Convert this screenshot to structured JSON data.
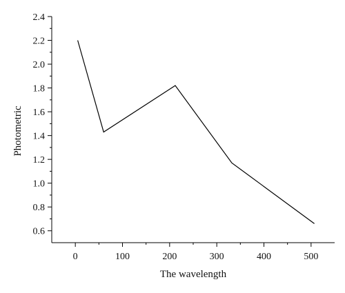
{
  "chart_data": {
    "type": "line",
    "title": "",
    "xlabel": "The wavelength",
    "ylabel": "Photometric",
    "xlim": [
      -50,
      550
    ],
    "ylim": [
      0.5,
      2.4
    ],
    "xticks": [
      0,
      100,
      200,
      300,
      400,
      500
    ],
    "xtick_labels": [
      "0",
      "100",
      "200",
      "300",
      "400",
      "500"
    ],
    "yticks": [
      0.6,
      0.8,
      1.0,
      1.2,
      1.4,
      1.6,
      1.8,
      2.0,
      2.2,
      2.4
    ],
    "ytick_labels": [
      "0.6",
      "0.8",
      "1.0",
      "1.2",
      "1.4",
      "1.6",
      "1.8",
      "2.0",
      "2.2",
      "2.4"
    ],
    "grid": false,
    "legend": "none",
    "series": [
      {
        "x": [
          5,
          60,
          212,
          332,
          507
        ],
        "y": [
          2.2,
          1.43,
          1.82,
          1.17,
          0.66
        ]
      }
    ],
    "color": "#000000"
  }
}
